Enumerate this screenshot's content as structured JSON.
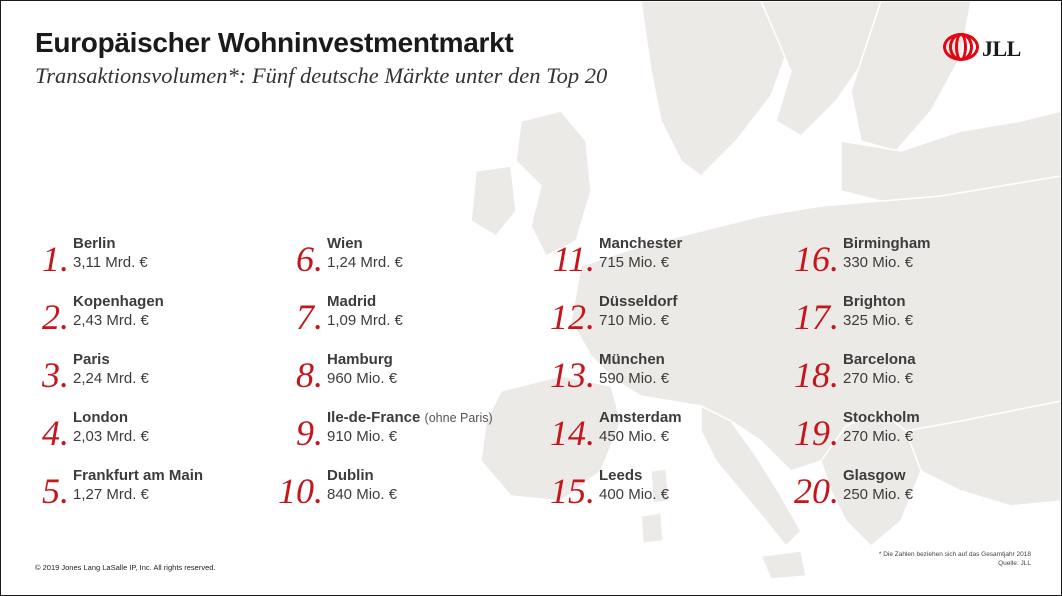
{
  "header": {
    "title": "Europäischer Wohninvestmentmarkt",
    "subtitle": "Transaktionsvolumen*: Fünf deutsche Märkte unter den Top 20",
    "logo_text": "JLL"
  },
  "rankings": [
    {
      "rank": "1.",
      "city": "Berlin",
      "value": "3,11 Mrd. €"
    },
    {
      "rank": "2.",
      "city": "Kopenhagen",
      "value": "2,43 Mrd. €"
    },
    {
      "rank": "3.",
      "city": "Paris",
      "value": "2,24 Mrd. €"
    },
    {
      "rank": "4.",
      "city": "London",
      "value": "2,03 Mrd. €"
    },
    {
      "rank": "5.",
      "city": "Frankfurt am Main",
      "value": "1,27 Mrd. €"
    },
    {
      "rank": "6.",
      "city": "Wien",
      "value": "1,24 Mrd. €"
    },
    {
      "rank": "7.",
      "city": "Madrid",
      "value": "1,09 Mrd. €"
    },
    {
      "rank": "8.",
      "city": "Hamburg",
      "value": "960 Mio. €"
    },
    {
      "rank": "9.",
      "city": "Ile-de-France",
      "note": "(ohne Paris)",
      "value": "910 Mio. €"
    },
    {
      "rank": "10.",
      "city": "Dublin",
      "value": "840 Mio. €"
    },
    {
      "rank": "11.",
      "city": "Manchester",
      "value": "715 Mio. €"
    },
    {
      "rank": "12.",
      "city": "Düsseldorf",
      "value": "710 Mio. €"
    },
    {
      "rank": "13.",
      "city": "München",
      "value": "590 Mio. €"
    },
    {
      "rank": "14.",
      "city": "Amsterdam",
      "value": "450 Mio. €"
    },
    {
      "rank": "15.",
      "city": "Leeds",
      "value": "400 Mio. €"
    },
    {
      "rank": "16.",
      "city": "Birmingham",
      "value": "330 Mio. €"
    },
    {
      "rank": "17.",
      "city": "Brighton",
      "value": "325 Mio. €"
    },
    {
      "rank": "18.",
      "city": "Barcelona",
      "value": "270 Mio. €"
    },
    {
      "rank": "19.",
      "city": "Stockholm",
      "value": "270 Mio. €"
    },
    {
      "rank": "20.",
      "city": "Glasgow",
      "value": "250 Mio. €"
    }
  ],
  "footer": {
    "copyright": "© 2019 Jones Lang LaSalle IP, Inc. All rights reserved.",
    "footnote_line1": "* Die Zahlen beziehen sich auf das Gesamtjahr 2018",
    "footnote_line2": "Quelle: JLL"
  },
  "colors": {
    "accent_red": "#c4161c",
    "logo_red": "#e30613",
    "text_dark": "#1a1a1a",
    "text_gray": "#3c3c3c",
    "map_land": "#eceae6"
  },
  "icons": {
    "logo_mark": "jll-logo-icon",
    "background": "europe-map-background"
  }
}
